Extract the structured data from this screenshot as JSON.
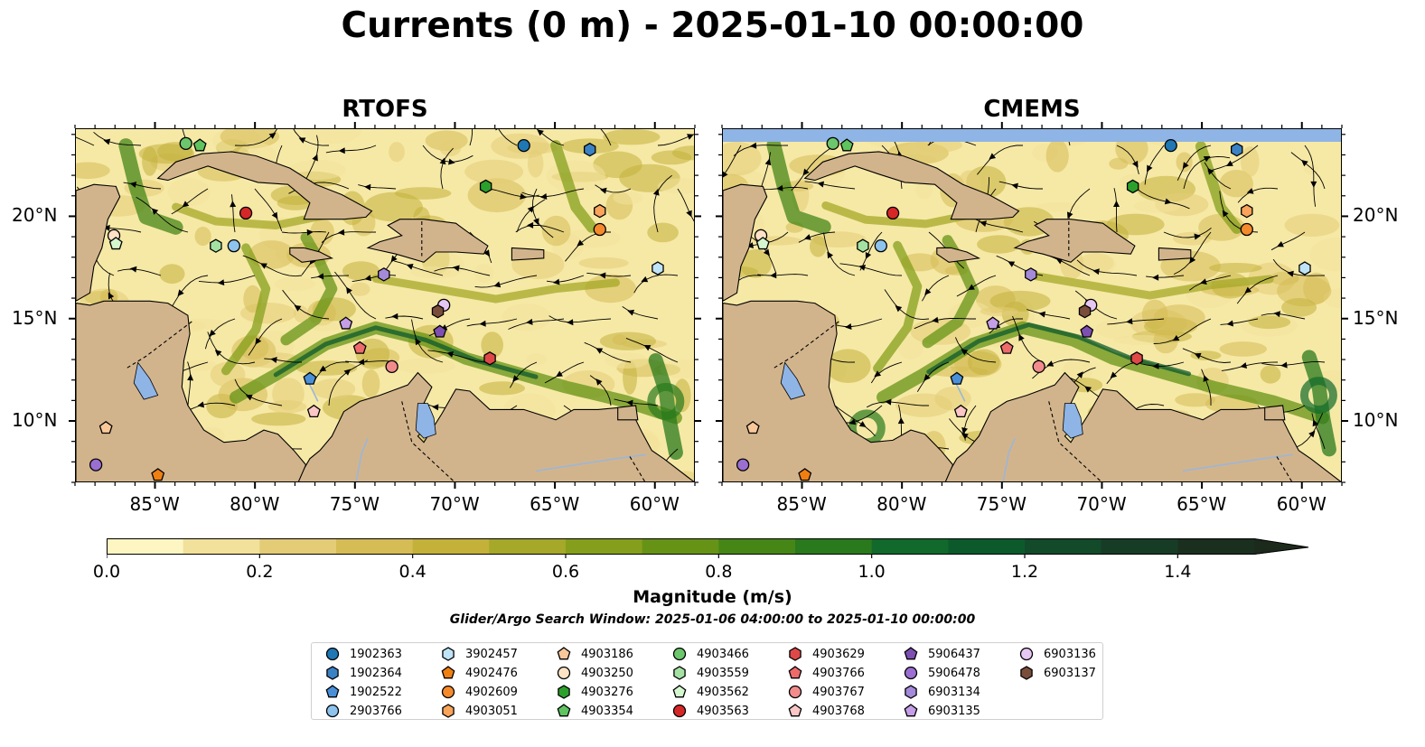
{
  "figure": {
    "title": "Currents (0 m) - 2025-01-10 00:00:00",
    "window_text": "Glider/Argo Search Window: 2025-01-06 04:00:00 to 2025-01-10 00:00:00"
  },
  "panels": [
    {
      "title": "RTOFS"
    },
    {
      "title": "CMEMS"
    }
  ],
  "map_extent": {
    "lon_min": -89,
    "lon_max": -58,
    "lat_min": 7,
    "lat_max": 24.3
  },
  "axes": {
    "lon_ticks": [
      {
        "value": -85,
        "label": "85°W"
      },
      {
        "value": -80,
        "label": "80°W"
      },
      {
        "value": -75,
        "label": "75°W"
      },
      {
        "value": -70,
        "label": "70°W"
      },
      {
        "value": -65,
        "label": "65°W"
      },
      {
        "value": -60,
        "label": "60°W"
      }
    ],
    "lat_ticks": [
      {
        "value": 20,
        "label": "20°N"
      },
      {
        "value": 15,
        "label": "15°N"
      },
      {
        "value": 10,
        "label": "10°N"
      }
    ]
  },
  "colorbar": {
    "title": "Magnitude (m/s)",
    "min": 0.0,
    "max": 1.5,
    "extend": "max",
    "ticks": [
      {
        "value": 0.0,
        "label": "0.0"
      },
      {
        "value": 0.2,
        "label": "0.2"
      },
      {
        "value": 0.4,
        "label": "0.4"
      },
      {
        "value": 0.6,
        "label": "0.6"
      },
      {
        "value": 0.8,
        "label": "0.8"
      },
      {
        "value": 1.0,
        "label": "1.0"
      },
      {
        "value": 1.2,
        "label": "1.2"
      },
      {
        "value": 1.4,
        "label": "1.4"
      }
    ],
    "colors": [
      "#fdf6c3",
      "#f2e19b",
      "#e4cc77",
      "#d6bc55",
      "#c3b13a",
      "#a5a828",
      "#859f1c",
      "#669316",
      "#458617",
      "#2a791c",
      "#11692b",
      "#0c5a2c",
      "#124a2a",
      "#173c26",
      "#1b2f1f"
    ],
    "extend_color": "#1c2a1c"
  },
  "colors": {
    "land": "#d2b48c",
    "ocean_base": "#f6e9a6",
    "water_bodies": "#8fb4e6",
    "rivers": "#9cb6d8",
    "marker_edge": "#000000"
  },
  "floats": [
    {
      "id": "1902363",
      "marker": "circle",
      "color": "#1f77b4",
      "lon": -66.6,
      "lat": 23.5
    },
    {
      "id": "1902364",
      "marker": "hexagon",
      "color": "#3b82c4",
      "lon": -63.3,
      "lat": 23.3
    },
    {
      "id": "1902522",
      "marker": "pentagon",
      "color": "#4a90d9",
      "lon": -77.3,
      "lat": 12.1
    },
    {
      "id": "2903766",
      "marker": "circle",
      "color": "#8ec3ee",
      "lon": -81.1,
      "lat": 18.6
    },
    {
      "id": "3902457",
      "marker": "hexagon",
      "color": "#bfe3f7",
      "lon": -59.9,
      "lat": 17.5
    },
    {
      "id": "4902476",
      "marker": "pentagon",
      "color": "#f07f12",
      "lon": -84.9,
      "lat": 7.4
    },
    {
      "id": "4902609",
      "marker": "circle",
      "color": "#f58a2c",
      "lon": -62.8,
      "lat": 19.4
    },
    {
      "id": "4903051",
      "marker": "hexagon",
      "color": "#f9a35b",
      "lon": -62.8,
      "lat": 20.3
    },
    {
      "id": "4903186",
      "marker": "pentagon",
      "color": "#f8c89a",
      "lon": -87.5,
      "lat": 9.7
    },
    {
      "id": "4903250",
      "marker": "circle",
      "color": "#fde2c6",
      "lon": -87.1,
      "lat": 19.1
    },
    {
      "id": "4903276",
      "marker": "hexagon",
      "color": "#2ca02c",
      "lon": -68.5,
      "lat": 21.5
    },
    {
      "id": "4903354",
      "marker": "pentagon",
      "color": "#5fc45f",
      "lon": -82.8,
      "lat": 23.5
    },
    {
      "id": "4903466",
      "marker": "circle",
      "color": "#6cc66c",
      "lon": -83.5,
      "lat": 23.6
    },
    {
      "id": "4903559",
      "marker": "hexagon",
      "color": "#a4e2a4",
      "lon": -82.0,
      "lat": 18.6
    },
    {
      "id": "4903562",
      "marker": "pentagon",
      "color": "#d5f7d0",
      "lon": -87.0,
      "lat": 18.7
    },
    {
      "id": "4903563",
      "marker": "circle",
      "color": "#d62728",
      "lon": -80.5,
      "lat": 20.2
    },
    {
      "id": "4903629",
      "marker": "hexagon",
      "color": "#e04848",
      "lon": -68.3,
      "lat": 13.1
    },
    {
      "id": "4903766",
      "marker": "pentagon",
      "color": "#ed6b6b",
      "lon": -74.8,
      "lat": 13.6
    },
    {
      "id": "4903767",
      "marker": "circle",
      "color": "#f28c8c",
      "lon": -73.2,
      "lat": 12.7
    },
    {
      "id": "4903768",
      "marker": "pentagon",
      "color": "#fbc6c6",
      "lon": -77.1,
      "lat": 10.5
    },
    {
      "id": "5906437",
      "marker": "pentagon",
      "color": "#7d4fb1",
      "lon": -70.8,
      "lat": 14.4
    },
    {
      "id": "5906478",
      "marker": "circle",
      "color": "#9a6fd1",
      "lon": -88.0,
      "lat": 7.9
    },
    {
      "id": "6903134",
      "marker": "hexagon",
      "color": "#a48ad8",
      "lon": -73.6,
      "lat": 17.2
    },
    {
      "id": "6903135",
      "marker": "pentagon",
      "color": "#c49ee6",
      "lon": -75.5,
      "lat": 14.8
    },
    {
      "id": "6903136",
      "marker": "circle",
      "color": "#e6c6f3",
      "lon": -70.6,
      "lat": 15.7
    },
    {
      "id": "6903137",
      "marker": "hexagon",
      "color": "#7a4d3a",
      "lon": -70.9,
      "lat": 15.4
    }
  ]
}
